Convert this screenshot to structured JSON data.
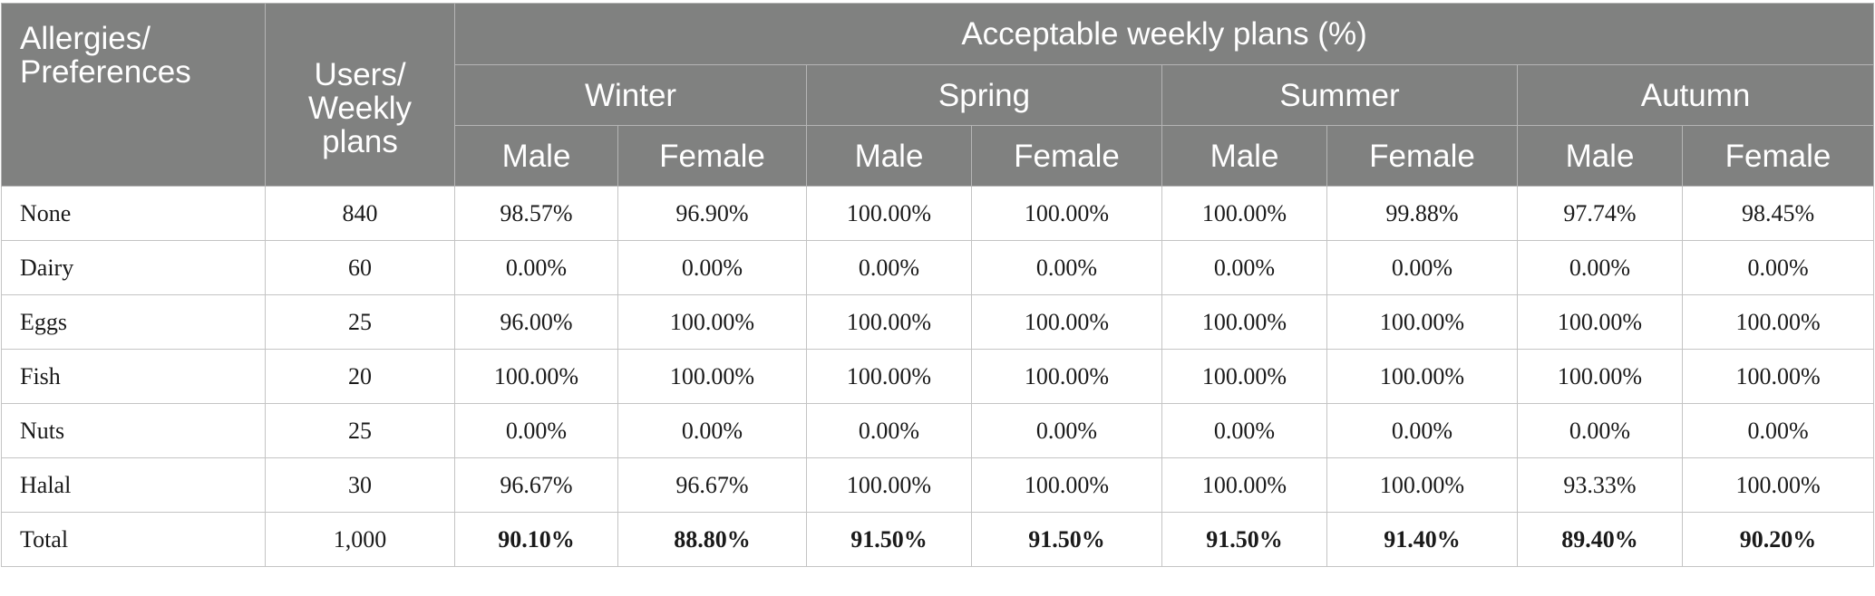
{
  "header": {
    "corner": "Allergies/ Preferences",
    "users": "Users/ Weekly plans",
    "group_title": "Acceptable weekly plans (%)",
    "seasons": [
      "Winter",
      "Spring",
      "Summer",
      "Autumn"
    ],
    "sex": [
      "Male",
      "Female"
    ]
  },
  "rows": [
    {
      "label": "None",
      "users": "840",
      "values": [
        "98.57%",
        "96.90%",
        "100.00%",
        "100.00%",
        "100.00%",
        "99.88%",
        "97.74%",
        "98.45%"
      ]
    },
    {
      "label": "Dairy",
      "users": "60",
      "values": [
        "0.00%",
        "0.00%",
        "0.00%",
        "0.00%",
        "0.00%",
        "0.00%",
        "0.00%",
        "0.00%"
      ]
    },
    {
      "label": "Eggs",
      "users": "25",
      "values": [
        "96.00%",
        "100.00%",
        "100.00%",
        "100.00%",
        "100.00%",
        "100.00%",
        "100.00%",
        "100.00%"
      ]
    },
    {
      "label": "Fish",
      "users": "20",
      "values": [
        "100.00%",
        "100.00%",
        "100.00%",
        "100.00%",
        "100.00%",
        "100.00%",
        "100.00%",
        "100.00%"
      ]
    },
    {
      "label": "Nuts",
      "users": "25",
      "values": [
        "0.00%",
        "0.00%",
        "0.00%",
        "0.00%",
        "0.00%",
        "0.00%",
        "0.00%",
        "0.00%"
      ]
    },
    {
      "label": "Halal",
      "users": "30",
      "values": [
        "96.67%",
        "96.67%",
        "100.00%",
        "100.00%",
        "100.00%",
        "100.00%",
        "93.33%",
        "100.00%"
      ]
    },
    {
      "label": "Total",
      "users": "1,000",
      "values": [
        "90.10%",
        "88.80%",
        "91.50%",
        "91.50%",
        "91.50%",
        "91.40%",
        "89.40%",
        "90.20%"
      ]
    }
  ]
}
